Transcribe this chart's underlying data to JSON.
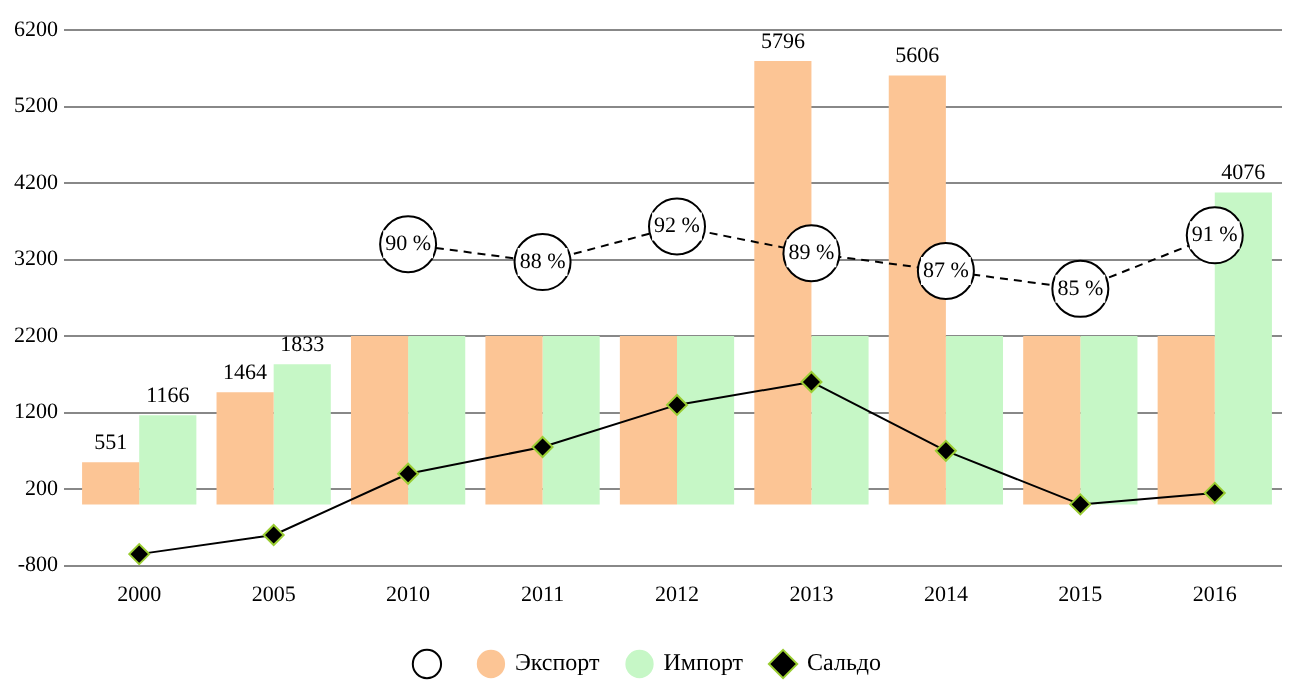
{
  "chart_data": {
    "type": "bar",
    "categories": [
      "2000",
      "2005",
      "2010",
      "2011",
      "2012",
      "2013",
      "2014",
      "2015",
      "2016"
    ],
    "series": [
      {
        "type": "line",
        "axis": "y2",
        "color": "#000000",
        "marker": "circle",
        "line_style": "dashed",
        "values": [
          null,
          null,
          90,
          88,
          92,
          89,
          87,
          85,
          91
        ],
        "value_labels": [
          null,
          null,
          "90 %",
          "88 %",
          "92 %",
          "89 %",
          "87 %",
          "85 %",
          "91 %"
        ]
      },
      {
        "name": "Экспорт",
        "color": "#fcc595",
        "values": [
          551,
          1464,
          2200,
          2200,
          2200,
          5796,
          5606,
          2200,
          2200
        ],
        "value_labels": [
          "551",
          "1464",
          null,
          null,
          null,
          "5796",
          "5606",
          null,
          null
        ]
      },
      {
        "name": "Импорт",
        "color": "#c6f7c6",
        "values": [
          1166,
          1833,
          2200,
          2200,
          2200,
          2200,
          2200,
          2200,
          4076
        ],
        "value_labels": [
          "1166",
          "1833",
          null,
          null,
          null,
          null,
          null,
          null,
          "4076"
        ]
      },
      {
        "name": "Сальдо",
        "type": "line",
        "color": "#000000",
        "marker": "diamond",
        "line_style": "solid",
        "values": [
          -650,
          -400,
          400,
          750,
          1300,
          1600,
          700,
          0,
          150
        ]
      }
    ],
    "ylim": [
      -800,
      6200
    ],
    "yticks": [
      -800,
      200,
      1200,
      2200,
      3200,
      4200,
      5200,
      6200
    ],
    "y2lim": [
      54,
      114
    ],
    "grid": "y",
    "legend": "bottom"
  }
}
